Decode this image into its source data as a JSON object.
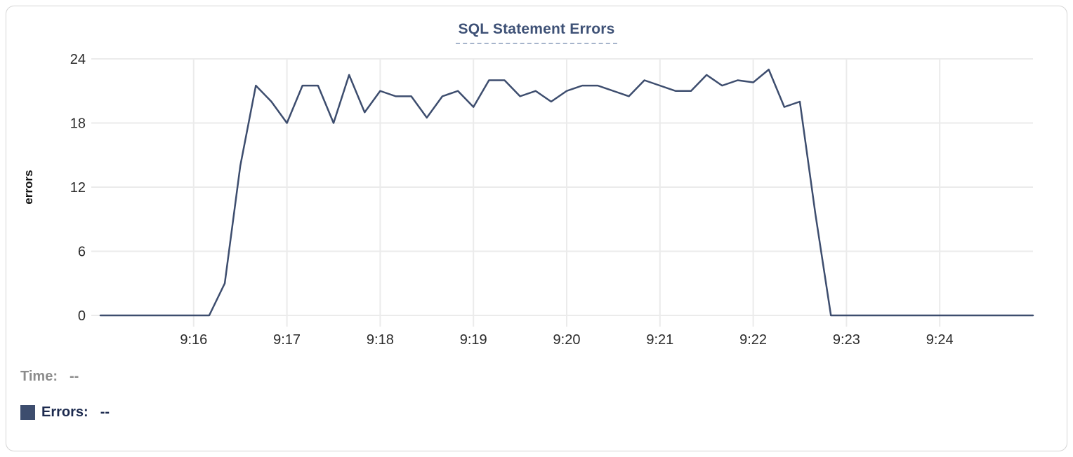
{
  "chart_data": {
    "type": "line",
    "title": "SQL Statement Errors",
    "xlabel": "",
    "ylabel": "errors",
    "ylim": [
      0,
      24
    ],
    "y_ticks": [
      0,
      6,
      12,
      18,
      24
    ],
    "x_ticks": [
      "9:16",
      "9:17",
      "9:18",
      "9:19",
      "9:20",
      "9:21",
      "9:22",
      "9:23",
      "9:24"
    ],
    "grid": true,
    "legend_position": "none",
    "x": [
      "9:15:00",
      "9:15:10",
      "9:15:20",
      "9:15:30",
      "9:15:40",
      "9:15:50",
      "9:16:00",
      "9:16:10",
      "9:16:20",
      "9:16:30",
      "9:16:40",
      "9:16:50",
      "9:17:00",
      "9:17:10",
      "9:17:20",
      "9:17:30",
      "9:17:40",
      "9:17:50",
      "9:18:00",
      "9:18:10",
      "9:18:20",
      "9:18:30",
      "9:18:40",
      "9:18:50",
      "9:19:00",
      "9:19:10",
      "9:19:20",
      "9:19:30",
      "9:19:40",
      "9:19:50",
      "9:20:00",
      "9:20:10",
      "9:20:20",
      "9:20:30",
      "9:20:40",
      "9:20:50",
      "9:21:00",
      "9:21:10",
      "9:21:20",
      "9:21:30",
      "9:21:40",
      "9:21:50",
      "9:22:00",
      "9:22:10",
      "9:22:20",
      "9:22:30",
      "9:22:40",
      "9:22:50",
      "9:23:00",
      "9:23:10",
      "9:23:20",
      "9:23:30",
      "9:23:40",
      "9:23:50",
      "9:24:00",
      "9:24:10",
      "9:24:20",
      "9:24:30",
      "9:24:40",
      "9:24:50",
      "9:25:00"
    ],
    "series": [
      {
        "name": "Errors",
        "values": [
          0,
          0,
          0,
          0,
          0,
          0,
          0,
          0,
          3,
          14,
          21.5,
          20,
          18,
          21.5,
          21.5,
          18,
          22.5,
          19,
          21,
          20.5,
          20.5,
          18.5,
          20.5,
          21,
          19.5,
          22,
          22,
          20.5,
          21,
          20,
          21,
          21.5,
          21.5,
          21,
          20.5,
          22,
          21.5,
          21,
          21,
          22.5,
          21.5,
          22,
          21.8,
          23,
          19.5,
          20,
          9.5,
          0,
          0,
          0,
          0,
          0,
          0,
          0,
          0,
          0,
          0,
          0,
          0,
          0,
          0
        ]
      }
    ],
    "colors": {
      "line": "#3d4d6e",
      "grid": "#ebebeb",
      "tick_label": "#2b2b2b",
      "axis_label": "#111111",
      "title": "#3e5176",
      "title_underline": "#a6b4cb"
    }
  },
  "tooltip": {
    "time_label": "Time:",
    "time_value": "--",
    "errors_label": "Errors:",
    "errors_value": "--",
    "swatch_color": "#3d4d6e",
    "time_color": "#8c8c8c",
    "errors_color": "#1d2b4f"
  }
}
